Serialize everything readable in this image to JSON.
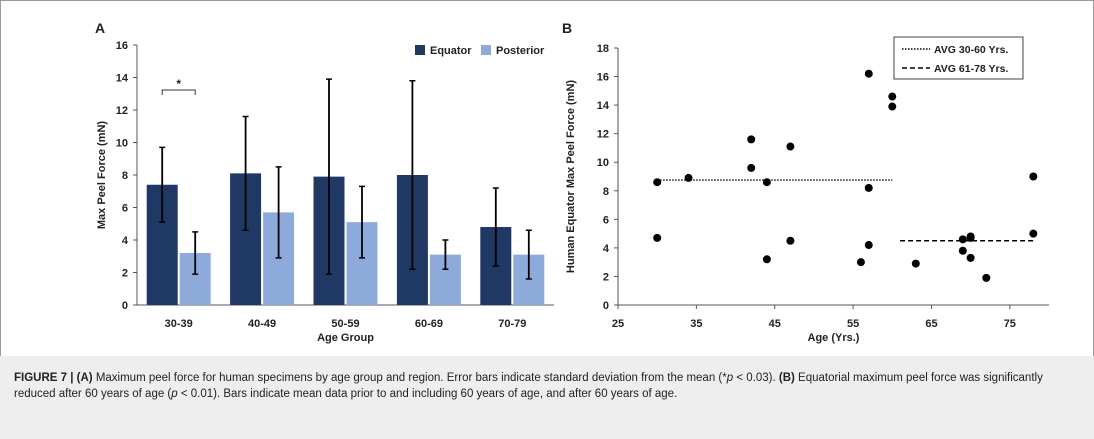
{
  "chart_data": [
    {
      "type": "bar",
      "panel_label": "A",
      "categories": [
        "30-39",
        "40-49",
        "50-59",
        "60-69",
        "70-79"
      ],
      "series": [
        {
          "name": "Equator",
          "color": "#1f3864",
          "values": [
            7.4,
            8.1,
            7.9,
            8.0,
            4.8
          ],
          "errors": [
            2.3,
            3.5,
            6.0,
            5.8,
            2.4
          ]
        },
        {
          "name": "Posterior",
          "color": "#8eaadb",
          "values": [
            3.2,
            5.7,
            5.1,
            3.1,
            3.1
          ],
          "errors": [
            1.3,
            2.8,
            2.2,
            0.9,
            1.5
          ]
        }
      ],
      "xlabel": "Age Group",
      "ylabel": "Max Peel Force (mN)",
      "ylim": [
        0,
        16
      ],
      "yticks": [
        "0",
        "2",
        "4",
        "6",
        "8",
        "10",
        "12",
        "14",
        "16"
      ],
      "annotation": "*",
      "legend_placement": "top-right",
      "grid": false
    },
    {
      "type": "scatter",
      "panel_label": "B",
      "points": [
        [
          30,
          8.6
        ],
        [
          30,
          4.7
        ],
        [
          34,
          8.9
        ],
        [
          42,
          11.6
        ],
        [
          42,
          9.6
        ],
        [
          44,
          8.6
        ],
        [
          44,
          3.2
        ],
        [
          47,
          11.1
        ],
        [
          47,
          4.5
        ],
        [
          56,
          3.0
        ],
        [
          57,
          16.2
        ],
        [
          57,
          8.2
        ],
        [
          57,
          4.2
        ],
        [
          60,
          14.6
        ],
        [
          60,
          13.9
        ],
        [
          63,
          2.9
        ],
        [
          69,
          4.6
        ],
        [
          69,
          3.8
        ],
        [
          70,
          4.8
        ],
        [
          70,
          4.7
        ],
        [
          70,
          3.3
        ],
        [
          72,
          1.9
        ],
        [
          78,
          9.0
        ],
        [
          78,
          5.0
        ]
      ],
      "averages": [
        {
          "name": "AVG 30-60 Yrs.",
          "x_range": [
            30,
            60
          ],
          "y": 8.75,
          "style": "dotted"
        },
        {
          "name": "AVG 61-78 Yrs.",
          "x_range": [
            61,
            78
          ],
          "y": 4.5,
          "style": "dashed"
        }
      ],
      "xlabel": "Age (Yrs.)",
      "ylabel": "Human Equator Max Peel Force (mN)",
      "xlim": [
        25,
        80
      ],
      "ylim": [
        0,
        18
      ],
      "xticks": [
        "25",
        "35",
        "45",
        "55",
        "65",
        "75"
      ],
      "yticks": [
        "0",
        "2",
        "4",
        "6",
        "8",
        "10",
        "12",
        "14",
        "16",
        "18"
      ],
      "legend_placement": "top-right",
      "grid": false
    }
  ],
  "caption": {
    "label": "FIGURE 7 |",
    "a_label": "(A)",
    "a_text_1": " Maximum peel force for human specimens by age group and region. Error bars indicate standard deviation from the mean (*",
    "p1": "p",
    "a_text_2": " < 0.03). ",
    "b_label": "(B)",
    "b_text_1": " Equatorial maximum peel force was significantly reduced after 60 years of age (",
    "p2": "p",
    "b_text_2": " < 0.01). Bars indicate mean data prior to and including 60 years of age, and after 60 years of age."
  }
}
